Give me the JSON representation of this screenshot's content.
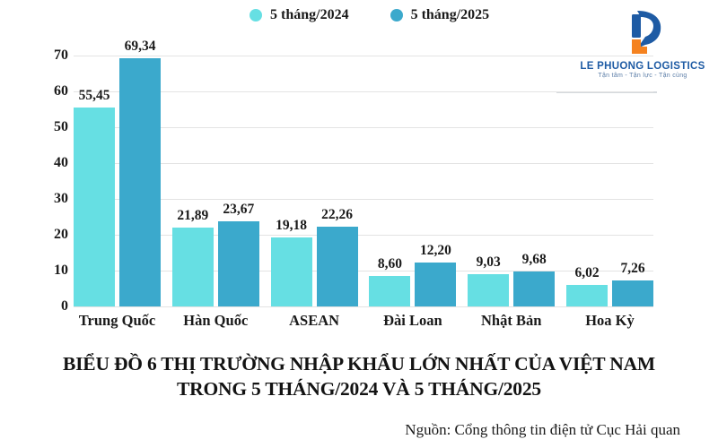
{
  "legend": {
    "items": [
      {
        "label": "5 tháng/2024",
        "color": "#66DFE3"
      },
      {
        "label": "5 tháng/2025",
        "color": "#3BA9CC"
      }
    ]
  },
  "logo": {
    "name": "LE PHUONG LOGISTICS",
    "tagline": "Tận tâm - Tận lực - Tận cùng",
    "blue": "#1e5ba4",
    "orange": "#f5821f"
  },
  "chart_data": {
    "type": "bar",
    "categories": [
      "Trung Quốc",
      "Hàn Quốc",
      "ASEAN",
      "Đài Loan",
      "Nhật Bản",
      "Hoa Kỳ"
    ],
    "series": [
      {
        "name": "5 tháng/2024",
        "color": "#66DFE3",
        "values": [
          55.45,
          21.89,
          19.18,
          8.6,
          9.03,
          6.02
        ],
        "labels": [
          "55,45",
          "21,89",
          "19,18",
          "8,60",
          "9,03",
          "6,02"
        ]
      },
      {
        "name": "5 tháng/2025",
        "color": "#3BA9CC",
        "values": [
          69.34,
          23.67,
          22.26,
          12.2,
          9.68,
          7.26
        ],
        "labels": [
          "69,34",
          "23,67",
          "22,26",
          "12,20",
          "9,68",
          "7,26"
        ]
      }
    ],
    "y_ticks": [
      0,
      10,
      20,
      30,
      40,
      50,
      60,
      70
    ],
    "ylim": [
      0,
      70
    ],
    "grid": true,
    "legend_position": "top-center",
    "xlabel": "",
    "ylabel": ""
  },
  "title": {
    "line1": "BIỂU ĐỒ 6 THỊ TRƯỜNG NHẬP KHẨU LỚN NHẤT CỦA VIỆT NAM",
    "line2": "TRONG 5 THÁNG/2024 VÀ 5 THÁNG/2025"
  },
  "source": "Nguồn: Cổng thông tin điện tử Cục Hải quan"
}
